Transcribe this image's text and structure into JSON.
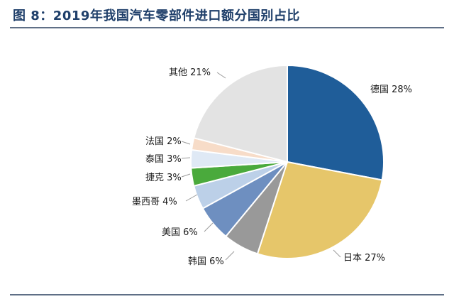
{
  "figure": {
    "title": "图 8：2019年我国汽车零部件进口额分国别占比"
  },
  "chart_data": {
    "type": "pie",
    "title": "图 8：2019年我国汽车零部件进口额分国别占比",
    "start": "12 o'clock",
    "direction": "clockwise",
    "slices": [
      {
        "name": "德国",
        "value": 28,
        "label": "德国 28%",
        "color": "#1f5d99"
      },
      {
        "name": "日本",
        "value": 27,
        "label": "日本 27%",
        "color": "#e6c66a"
      },
      {
        "name": "韩国",
        "value": 6,
        "label": "韩国 6%",
        "color": "#999999"
      },
      {
        "name": "美国",
        "value": 6,
        "label": "美国 6%",
        "color": "#6e8fc0"
      },
      {
        "name": "墨西哥",
        "value": 4,
        "label": "墨西哥 4%",
        "color": "#bcd0e8"
      },
      {
        "name": "捷克",
        "value": 3,
        "label": "捷克 3%",
        "color": "#4aaa3c"
      },
      {
        "name": "泰国",
        "value": 3,
        "label": "泰国 3%",
        "color": "#dfe9f5"
      },
      {
        "name": "法国",
        "value": 2,
        "label": "法国 2%",
        "color": "#f7dcc8"
      },
      {
        "name": "其他",
        "value": 21,
        "label": "其他 21%",
        "color": "#e3e3e3"
      }
    ]
  }
}
